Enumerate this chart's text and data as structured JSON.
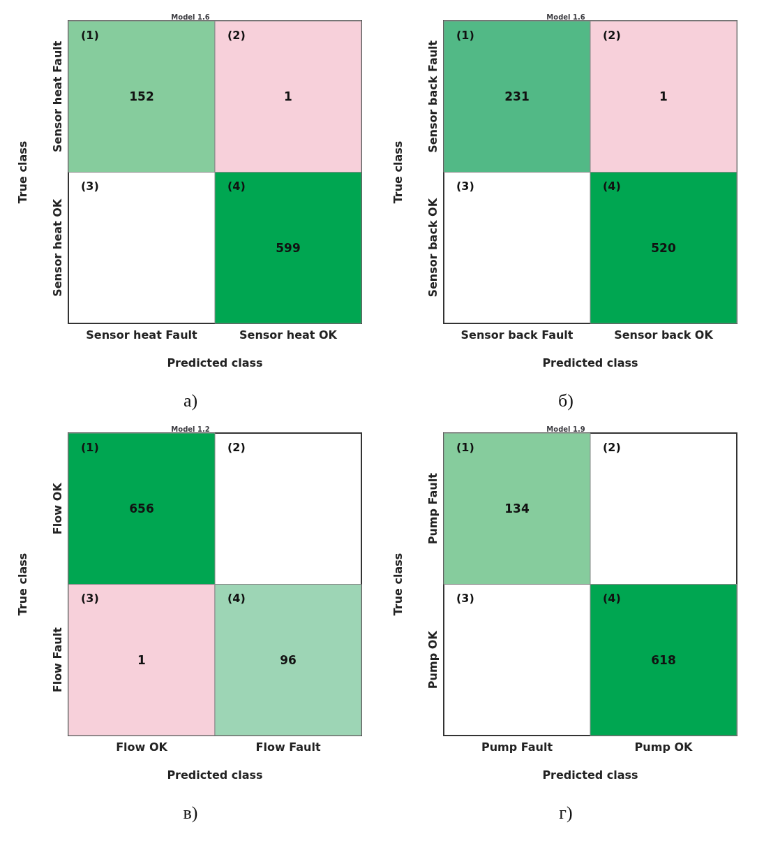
{
  "chart_data": [
    {
      "type": "heatmap",
      "title": "Model 1.6",
      "xlabel": "Predicted class",
      "ylabel": "True class",
      "categories": [
        "Sensor heat Fault",
        "Sensor heat OK"
      ],
      "y_categories": [
        "Sensor heat Fault",
        "Sensor heat OK"
      ],
      "cells": [
        [
          152,
          1
        ],
        [
          null,
          599
        ]
      ],
      "colors": [
        [
          "#86cc9d",
          "#f7d0da"
        ],
        [
          null,
          "#00a651"
        ]
      ],
      "data_labels": true,
      "annotations": [
        "(1)",
        "(2)",
        "(3)",
        "(4)",
        "а)"
      ]
    },
    {
      "type": "heatmap",
      "title": "Model 1.6",
      "xlabel": "Predicted class",
      "ylabel": "True class",
      "categories": [
        "Sensor back Fault",
        "Sensor back OK"
      ],
      "y_categories": [
        "Sensor back Fault",
        "Sensor back OK"
      ],
      "cells": [
        [
          231,
          1
        ],
        [
          null,
          520
        ]
      ],
      "colors": [
        [
          "#52b986",
          "#f7d0da"
        ],
        [
          null,
          "#00a651"
        ]
      ],
      "data_labels": true,
      "annotations": [
        "(1)",
        "(2)",
        "(3)",
        "(4)",
        "б)"
      ]
    },
    {
      "type": "heatmap",
      "title": "Model 1.2",
      "xlabel": "Predicted class",
      "ylabel": "True class",
      "categories": [
        "Flow OK",
        "Flow Fault"
      ],
      "y_categories": [
        "Flow OK",
        "Flow Fault"
      ],
      "cells": [
        [
          656,
          null
        ],
        [
          1,
          96
        ]
      ],
      "colors": [
        [
          "#00a651",
          null
        ],
        [
          "#f7d0da",
          "#9dd5b5"
        ]
      ],
      "data_labels": true,
      "annotations": [
        "(1)",
        "(2)",
        "(3)",
        "(4)",
        "в)"
      ]
    },
    {
      "type": "heatmap",
      "title": "Model 1.9",
      "xlabel": "Predicted class",
      "ylabel": "True class",
      "categories": [
        "Pump Fault",
        "Pump OK"
      ],
      "y_categories": [
        "Pump Fault",
        "Pump OK"
      ],
      "cells": [
        [
          134,
          null
        ],
        [
          null,
          618
        ]
      ],
      "colors": [
        [
          "#86cc9d",
          null
        ],
        [
          null,
          "#00a651"
        ]
      ],
      "data_labels": true,
      "annotations": [
        "(1)",
        "(2)",
        "(3)",
        "(4)",
        "г)"
      ]
    }
  ]
}
